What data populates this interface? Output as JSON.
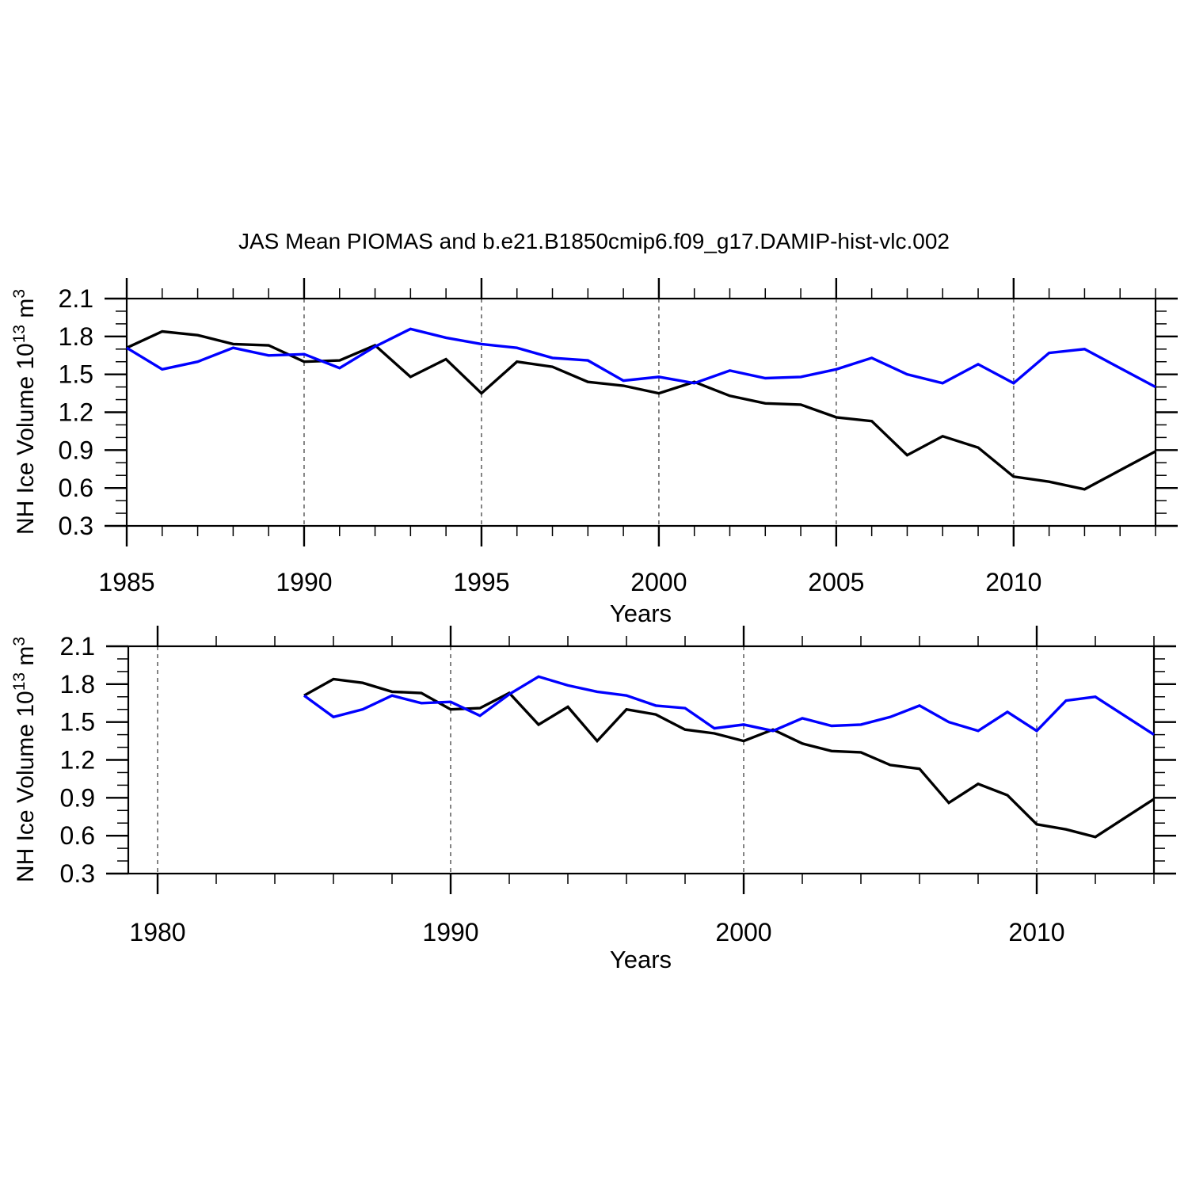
{
  "figure": {
    "title": "JAS Mean PIOMAS and b.e21.B1850cmip6.f09_g17.DAMIP-hist-vlc.002",
    "background": "#ffffff",
    "frame_color": "#000000",
    "gridline_color": "#777777",
    "series_colors": {
      "piomas": "#000000",
      "model": "#0000ff"
    }
  },
  "ylabel": {
    "main": "NH Ice Volume 10",
    "sup1": "13",
    "mid": " m",
    "sup2": "3"
  },
  "chart_data": [
    {
      "type": "line",
      "title": "JAS Mean PIOMAS and b.e21.B1850cmip6.f09_g17.DAMIP-hist-vlc.002",
      "xlabel": "Years",
      "ylabel": "NH Ice Volume 10^13 m^3",
      "xlim": [
        1985,
        2014
      ],
      "ylim": [
        0.3,
        2.1
      ],
      "x_major_ticks": [
        1985,
        1990,
        1995,
        2000,
        2005,
        2010
      ],
      "x_tick_labels": [
        "1985",
        "1990",
        "1995",
        "2000",
        "2005",
        "2010"
      ],
      "x_minor_step": 1,
      "y_major_ticks": [
        0.3,
        0.6,
        0.9,
        1.2,
        1.5,
        1.8,
        2.1
      ],
      "y_tick_labels": [
        "0.3",
        "0.6",
        "0.9",
        "1.2",
        "1.5",
        "1.8",
        "2.1"
      ],
      "y_minor_step": 0.1,
      "dashed_gridlines_x": [
        1990,
        1995,
        2000,
        2005,
        2010
      ],
      "grid": "vertical-dashed-at-major-ticks",
      "legend": "none",
      "x": [
        1985,
        1986,
        1987,
        1988,
        1989,
        1990,
        1991,
        1992,
        1993,
        1994,
        1995,
        1996,
        1997,
        1998,
        1999,
        2000,
        2001,
        2002,
        2003,
        2004,
        2005,
        2006,
        2007,
        2008,
        2009,
        2010,
        2011,
        2012,
        2013,
        2014
      ],
      "series": [
        {
          "name": "PIOMAS",
          "color": "#000000",
          "values": [
            1.71,
            1.84,
            1.81,
            1.74,
            1.73,
            1.6,
            1.61,
            1.73,
            1.48,
            1.62,
            1.35,
            1.6,
            1.56,
            1.44,
            1.41,
            1.35,
            1.44,
            1.33,
            1.27,
            1.26,
            1.16,
            1.13,
            0.86,
            1.01,
            0.92,
            0.69,
            0.65,
            0.59,
            0.74,
            0.89
          ]
        },
        {
          "name": "b.e21.B1850cmip6.f09_g17.DAMIP-hist-vlc.002",
          "color": "#0000ff",
          "values": [
            1.71,
            1.54,
            1.6,
            1.71,
            1.65,
            1.66,
            1.55,
            1.72,
            1.86,
            1.79,
            1.74,
            1.71,
            1.63,
            1.61,
            1.45,
            1.48,
            1.43,
            1.53,
            1.47,
            1.48,
            1.54,
            1.63,
            1.5,
            1.43,
            1.58,
            1.43,
            1.67,
            1.7,
            1.55,
            1.4
          ]
        }
      ]
    },
    {
      "type": "line",
      "title": "",
      "xlabel": "Years",
      "ylabel": "NH Ice Volume 10^13 m^3",
      "xlim": [
        1979,
        2014
      ],
      "ylim": [
        0.3,
        2.1
      ],
      "x_major_ticks": [
        1980,
        1990,
        2000,
        2010
      ],
      "x_tick_labels": [
        "1980",
        "1990",
        "2000",
        "2010"
      ],
      "x_minor_step": 2,
      "y_major_ticks": [
        0.3,
        0.6,
        0.9,
        1.2,
        1.5,
        1.8,
        2.1
      ],
      "y_tick_labels": [
        "0.3",
        "0.6",
        "0.9",
        "1.2",
        "1.5",
        "1.8",
        "2.1"
      ],
      "y_minor_step": 0.1,
      "dashed_gridlines_x": [
        1980,
        1990,
        2000,
        2010
      ],
      "grid": "vertical-dashed-at-major-ticks",
      "legend": "none",
      "x": [
        1985,
        1986,
        1987,
        1988,
        1989,
        1990,
        1991,
        1992,
        1993,
        1994,
        1995,
        1996,
        1997,
        1998,
        1999,
        2000,
        2001,
        2002,
        2003,
        2004,
        2005,
        2006,
        2007,
        2008,
        2009,
        2010,
        2011,
        2012,
        2013,
        2014
      ],
      "series": [
        {
          "name": "PIOMAS",
          "color": "#000000",
          "values": [
            1.71,
            1.84,
            1.81,
            1.74,
            1.73,
            1.6,
            1.61,
            1.73,
            1.48,
            1.62,
            1.35,
            1.6,
            1.56,
            1.44,
            1.41,
            1.35,
            1.44,
            1.33,
            1.27,
            1.26,
            1.16,
            1.13,
            0.86,
            1.01,
            0.92,
            0.69,
            0.65,
            0.59,
            0.74,
            0.89
          ]
        },
        {
          "name": "b.e21.B1850cmip6.f09_g17.DAMIP-hist-vlc.002",
          "color": "#0000ff",
          "values": [
            1.71,
            1.54,
            1.6,
            1.71,
            1.65,
            1.66,
            1.55,
            1.72,
            1.86,
            1.79,
            1.74,
            1.71,
            1.63,
            1.61,
            1.45,
            1.48,
            1.43,
            1.53,
            1.47,
            1.48,
            1.54,
            1.63,
            1.5,
            1.43,
            1.58,
            1.43,
            1.67,
            1.7,
            1.55,
            1.4
          ]
        }
      ]
    }
  ]
}
